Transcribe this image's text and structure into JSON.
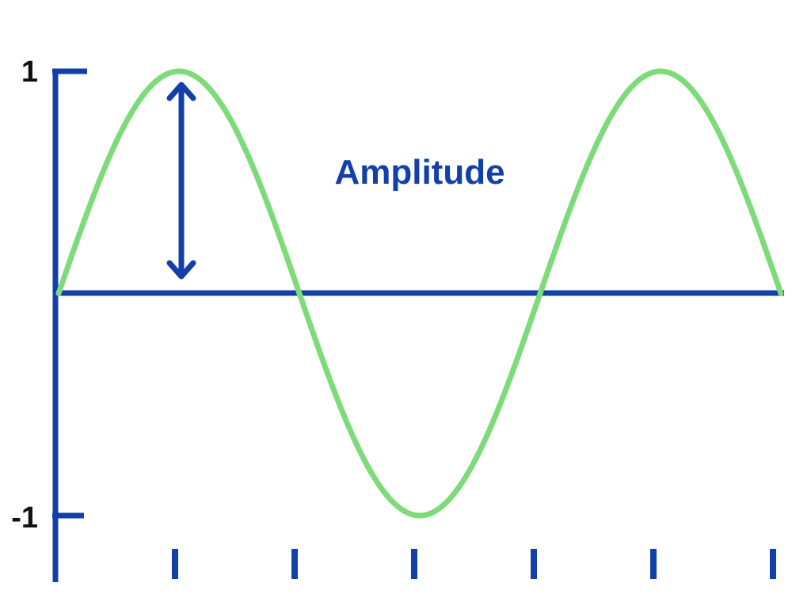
{
  "diagram": {
    "annotation": "Amplitude",
    "y_axis": {
      "max_label": "1",
      "min_label": "-1",
      "range": [
        -1,
        1
      ]
    },
    "wave": {
      "type": "sine",
      "amplitude": 1,
      "cycles_shown": 1.5,
      "x_tick_count": 6
    },
    "colors": {
      "axis": "#1340a8",
      "wave": "#7ddb7a",
      "arrow": "#1340a8",
      "annotation": "#1340a8",
      "tick_label": "#111111"
    }
  }
}
